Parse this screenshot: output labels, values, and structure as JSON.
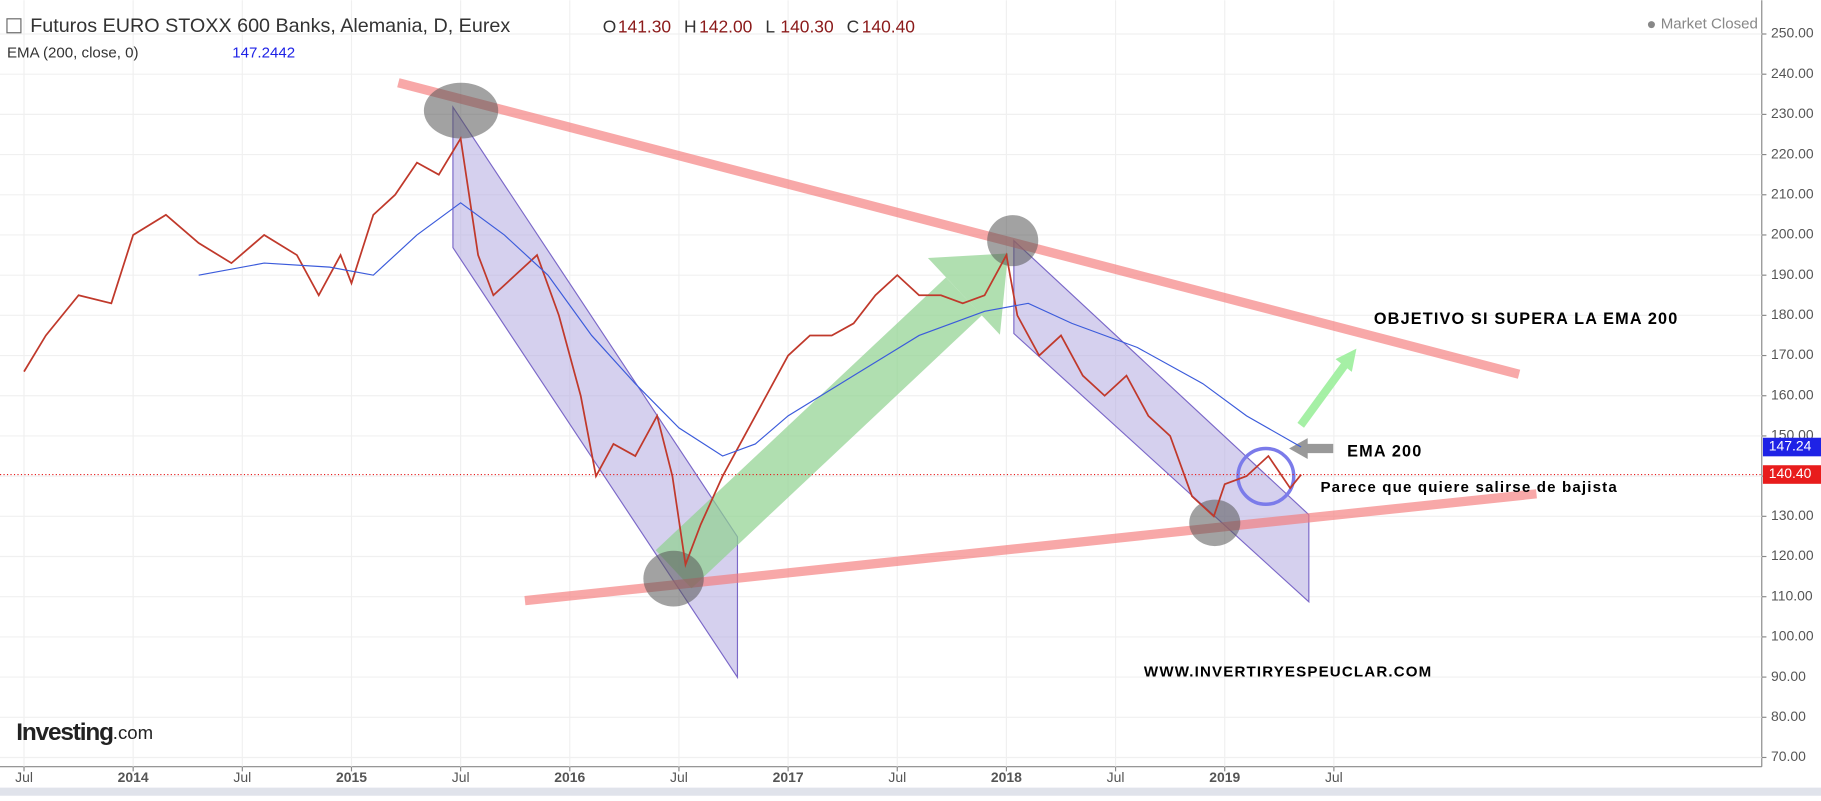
{
  "chart_data": {
    "type": "line",
    "title": "Futuros EURO STOXX 600 Banks, Alemania, D, Eurex",
    "ohlc": [
      {
        "name": "O",
        "value": 141.3,
        "label": "141.30"
      },
      {
        "name": "H",
        "value": 142,
        "label": "142.00"
      },
      {
        "name": "L",
        "value": 140.3,
        "label": "140.30"
      },
      {
        "name": "C",
        "value": 140.4,
        "label": "140.40"
      }
    ],
    "indicator": {
      "name": "EMA (200, close, 0)",
      "value": 147.2442
    },
    "status": "Market Closed",
    "logo": {
      "brand": "Investing",
      "suffix": ".com"
    },
    "annotations": [
      "OBJETIVO SI SUPERA LA EMA 200",
      "EMA 200",
      "Parece que quiere salirse de bajista",
      "WWW.INVERTIRYESPEUCLAR.COM"
    ],
    "series": [
      {
        "name": "Price",
        "color": "#c0392b",
        "x": [
          2013.5,
          2013.6,
          2013.75,
          2013.9,
          2014.0,
          2014.15,
          2014.3,
          2014.45,
          2014.6,
          2014.75,
          2014.85,
          2014.95,
          2015.0,
          2015.1,
          2015.2,
          2015.3,
          2015.4,
          2015.5,
          2015.58,
          2015.65,
          2015.75,
          2015.85,
          2015.95,
          2016.05,
          2016.12,
          2016.2,
          2016.3,
          2016.4,
          2016.47,
          2016.53,
          2016.6,
          2016.7,
          2016.8,
          2016.9,
          2017.0,
          2017.1,
          2017.2,
          2017.3,
          2017.4,
          2017.5,
          2017.6,
          2017.7,
          2017.8,
          2017.9,
          2018.0,
          2018.05,
          2018.15,
          2018.25,
          2018.35,
          2018.45,
          2018.55,
          2018.65,
          2018.75,
          2018.85,
          2018.95,
          2019.0,
          2019.1,
          2019.2,
          2019.3,
          2019.35
        ],
        "values": [
          166,
          175,
          185,
          183,
          200,
          205,
          198,
          193,
          200,
          195,
          185,
          195,
          188,
          205,
          210,
          218,
          215,
          224,
          195,
          185,
          190,
          195,
          180,
          160,
          140,
          148,
          145,
          155,
          140,
          118,
          128,
          140,
          150,
          160,
          170,
          175,
          175,
          178,
          185,
          190,
          185,
          185,
          183,
          185,
          195,
          180,
          170,
          175,
          165,
          160,
          165,
          155,
          150,
          135,
          130,
          138,
          140,
          145,
          137,
          140.4
        ]
      },
      {
        "name": "EMA 200",
        "color": "#3b5bdb",
        "x": [
          2014.3,
          2014.6,
          2014.9,
          2015.1,
          2015.3,
          2015.5,
          2015.7,
          2015.9,
          2016.1,
          2016.3,
          2016.5,
          2016.7,
          2016.85,
          2017.0,
          2017.3,
          2017.6,
          2017.9,
          2018.1,
          2018.3,
          2018.6,
          2018.9,
          2019.1,
          2019.35
        ],
        "values": [
          190,
          193,
          192,
          190,
          200,
          208,
          200,
          190,
          175,
          163,
          152,
          145,
          148,
          155,
          165,
          175,
          181,
          183,
          178,
          172,
          163,
          155,
          147.24
        ]
      }
    ],
    "price_tags": [
      {
        "value": 147.24,
        "label": "147.24",
        "color": "#1e22e6"
      },
      {
        "value": 140.4,
        "label": "140.40",
        "color": "#e81c1c"
      }
    ],
    "xlim": [
      2013.39,
      2021.46
    ],
    "xticks": [
      {
        "value": 2013.5,
        "label": "Jul"
      },
      2014,
      {
        "value": 2014.5,
        "label": "Jul"
      },
      2015,
      {
        "value": 2015.5,
        "label": "Jul"
      },
      2016,
      {
        "value": 2016.5,
        "label": "Jul"
      },
      2017,
      {
        "value": 2017.5,
        "label": "Jul"
      },
      2018,
      {
        "value": 2018.5,
        "label": "Jul"
      },
      2019,
      {
        "value": 2019.5,
        "label": "Jul"
      }
    ],
    "ylim": [
      67.7,
      258.4
    ],
    "yticks": [
      {
        "value": 70,
        "label": "70.00"
      },
      {
        "value": 80,
        "label": "80.00"
      },
      {
        "value": 90,
        "label": "90.00"
      },
      {
        "value": 100,
        "label": "100.00"
      },
      {
        "value": 110,
        "label": "110.00"
      },
      {
        "value": 120,
        "label": "120.00"
      },
      {
        "value": 130,
        "label": "130.00"
      },
      {
        "value": 140,
        "label": "140.00"
      },
      {
        "value": 150,
        "label": "150.00"
      },
      {
        "value": 160,
        "label": "160.00"
      },
      {
        "value": 170,
        "label": "170.00"
      },
      {
        "value": 180,
        "label": "180.00"
      },
      {
        "value": 190,
        "label": "190.00"
      },
      {
        "value": 200,
        "label": "200.00"
      },
      {
        "value": 210,
        "label": "210.00"
      },
      {
        "value": 220,
        "label": "220.00"
      },
      {
        "value": 230,
        "label": "230.00"
      },
      {
        "value": 240,
        "label": "240.00"
      },
      {
        "value": 250,
        "label": "250.00"
      }
    ],
    "grid": true
  }
}
